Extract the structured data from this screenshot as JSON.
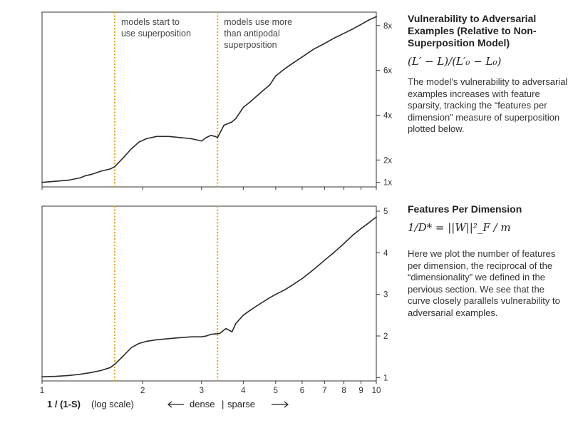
{
  "chart_data": [
    {
      "type": "line",
      "title": "Vulnerability to Adversarial Examples (Relative to Non-Superposition Model)",
      "formula": "(L′ − L)/(L′₀ − L₀)",
      "description": "The model's vulnerability to adversarial examples increases with feature sparsity, tracking the “features per dimension” measure of superposition plotted below.",
      "x_scale": "log",
      "xlim": [
        1,
        10
      ],
      "ylim": [
        0.8,
        8.6
      ],
      "y_ticks": [
        {
          "value": 1,
          "label": "1x"
        },
        {
          "value": 2,
          "label": "2x"
        },
        {
          "value": 4,
          "label": "4x"
        },
        {
          "value": 6,
          "label": "6x"
        },
        {
          "value": 8,
          "label": "8x"
        }
      ],
      "vlines": [
        1.65,
        3.35
      ],
      "annotations": [
        {
          "x": 1.65,
          "lines": [
            "models start to",
            "use superposition"
          ]
        },
        {
          "x": 3.35,
          "lines": [
            "models use more",
            "than antipodal",
            "superposition"
          ]
        }
      ],
      "series": [
        {
          "x": [
            1.0,
            1.1,
            1.2,
            1.3,
            1.35,
            1.4,
            1.5,
            1.6,
            1.65,
            1.75,
            1.85,
            1.95,
            2.05,
            2.2,
            2.4,
            2.6,
            2.8,
            3.0,
            3.1,
            3.2,
            3.3,
            3.35,
            3.5,
            3.7,
            3.8,
            4.0,
            4.2,
            4.5,
            4.8,
            5.0,
            5.3,
            5.6,
            6.0,
            6.5,
            7.0,
            7.5,
            8.0,
            8.5,
            9.0,
            9.5,
            10.0
          ],
          "values": [
            1.0,
            1.05,
            1.1,
            1.2,
            1.3,
            1.35,
            1.5,
            1.6,
            1.7,
            2.1,
            2.5,
            2.8,
            2.95,
            3.05,
            3.05,
            3.0,
            2.95,
            2.85,
            3.0,
            3.1,
            3.05,
            3.0,
            3.55,
            3.7,
            3.85,
            4.35,
            4.6,
            5.0,
            5.35,
            5.75,
            6.05,
            6.3,
            6.6,
            6.95,
            7.2,
            7.45,
            7.65,
            7.85,
            8.05,
            8.25,
            8.4
          ]
        }
      ]
    },
    {
      "type": "line",
      "title": "Features Per Dimension",
      "formula": "1/D* = ||W||²_F / m",
      "description": "Here we plot the number of features per dimension, the reciprocal of the “dimensionality” we defined in the pervious section. We see that the curve closely parallels vulnerability to adversarial examples.",
      "x_scale": "log",
      "xlim": [
        1,
        10
      ],
      "ylim": [
        0.92,
        5.12
      ],
      "y_ticks": [
        {
          "value": 1,
          "label": "1"
        },
        {
          "value": 2,
          "label": "2"
        },
        {
          "value": 3,
          "label": "3"
        },
        {
          "value": 4,
          "label": "4"
        },
        {
          "value": 5,
          "label": "5"
        }
      ],
      "vlines": [
        1.65,
        3.35
      ],
      "series": [
        {
          "x": [
            1.0,
            1.1,
            1.2,
            1.3,
            1.4,
            1.5,
            1.6,
            1.65,
            1.75,
            1.85,
            1.95,
            2.05,
            2.2,
            2.5,
            2.8,
            3.0,
            3.1,
            3.2,
            3.3,
            3.4,
            3.55,
            3.7,
            3.8,
            4.0,
            4.2,
            4.5,
            4.8,
            5.0,
            5.3,
            5.6,
            6.0,
            6.5,
            7.0,
            7.5,
            8.0,
            8.5,
            9.0,
            9.5,
            10.0
          ],
          "values": [
            1.02,
            1.03,
            1.05,
            1.08,
            1.12,
            1.17,
            1.24,
            1.32,
            1.52,
            1.72,
            1.82,
            1.87,
            1.91,
            1.95,
            1.98,
            1.98,
            2.0,
            2.04,
            2.05,
            2.06,
            2.18,
            2.1,
            2.3,
            2.5,
            2.62,
            2.78,
            2.92,
            3.0,
            3.1,
            3.22,
            3.38,
            3.6,
            3.82,
            4.02,
            4.22,
            4.42,
            4.58,
            4.72,
            4.86
          ]
        }
      ]
    }
  ],
  "x_axis": {
    "tick_labels": [
      {
        "value": 1,
        "label": "1"
      },
      {
        "value": 2,
        "label": "2"
      },
      {
        "value": 3,
        "label": "3"
      },
      {
        "value": 4,
        "label": "4"
      },
      {
        "value": 5,
        "label": "5"
      },
      {
        "value": 6,
        "label": "6"
      },
      {
        "value": 7,
        "label": "7"
      },
      {
        "value": 8,
        "label": "8"
      },
      {
        "value": 9,
        "label": "9"
      },
      {
        "value": 10,
        "label": "10"
      }
    ],
    "label_bold": "1 / (1-S)",
    "label_rest": "(log scale)",
    "direction_left": "dense",
    "direction_sep": "|",
    "direction_right": "sparse"
  },
  "colors": {
    "line": "#2a2a2a",
    "vline": "#e8a21c",
    "axis": "#333333"
  }
}
